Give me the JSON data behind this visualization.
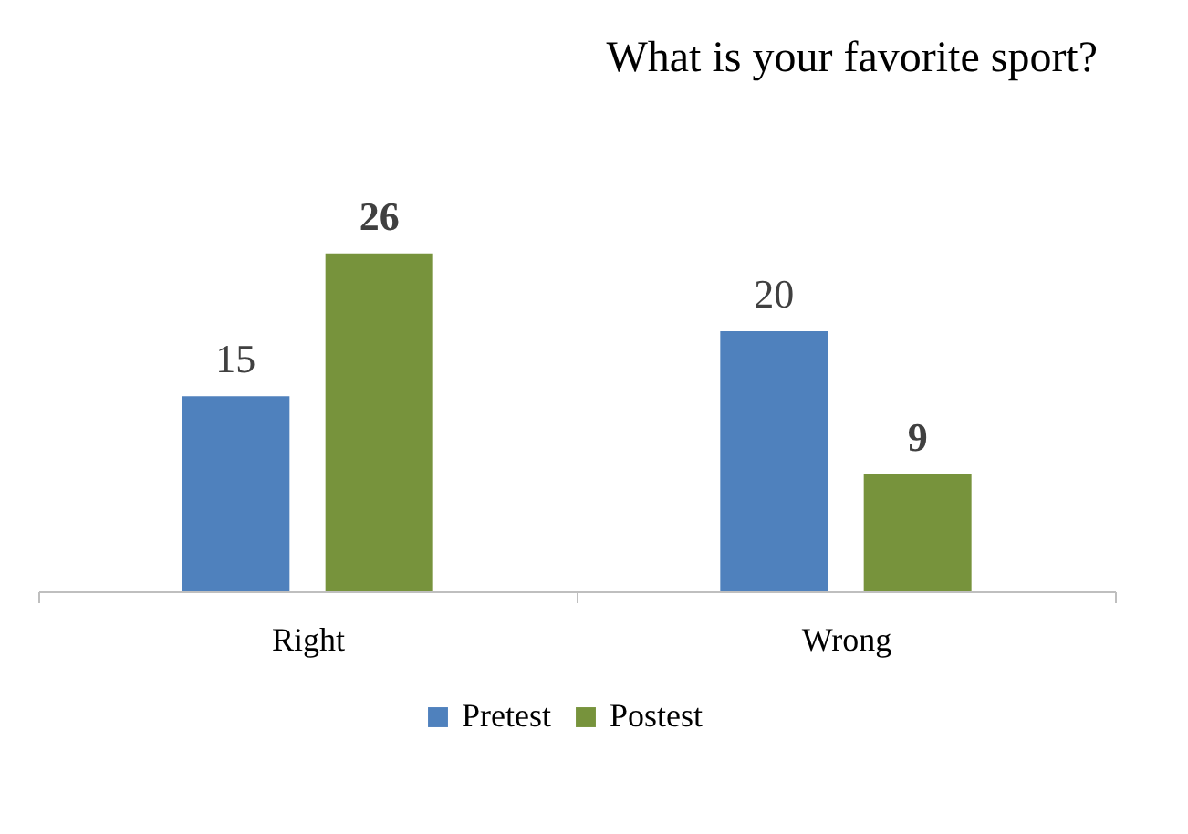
{
  "chart_data": {
    "type": "bar",
    "title": "What is your favorite sport?",
    "categories": [
      "Right",
      "Wrong"
    ],
    "series": [
      {
        "name": "Pretest",
        "color": "#4f81bd",
        "values": [
          15,
          20
        ]
      },
      {
        "name": "Postest",
        "color": "#77933c",
        "values": [
          26,
          9
        ]
      }
    ],
    "data_labels": true,
    "legend": "bottom",
    "grid": false
  }
}
